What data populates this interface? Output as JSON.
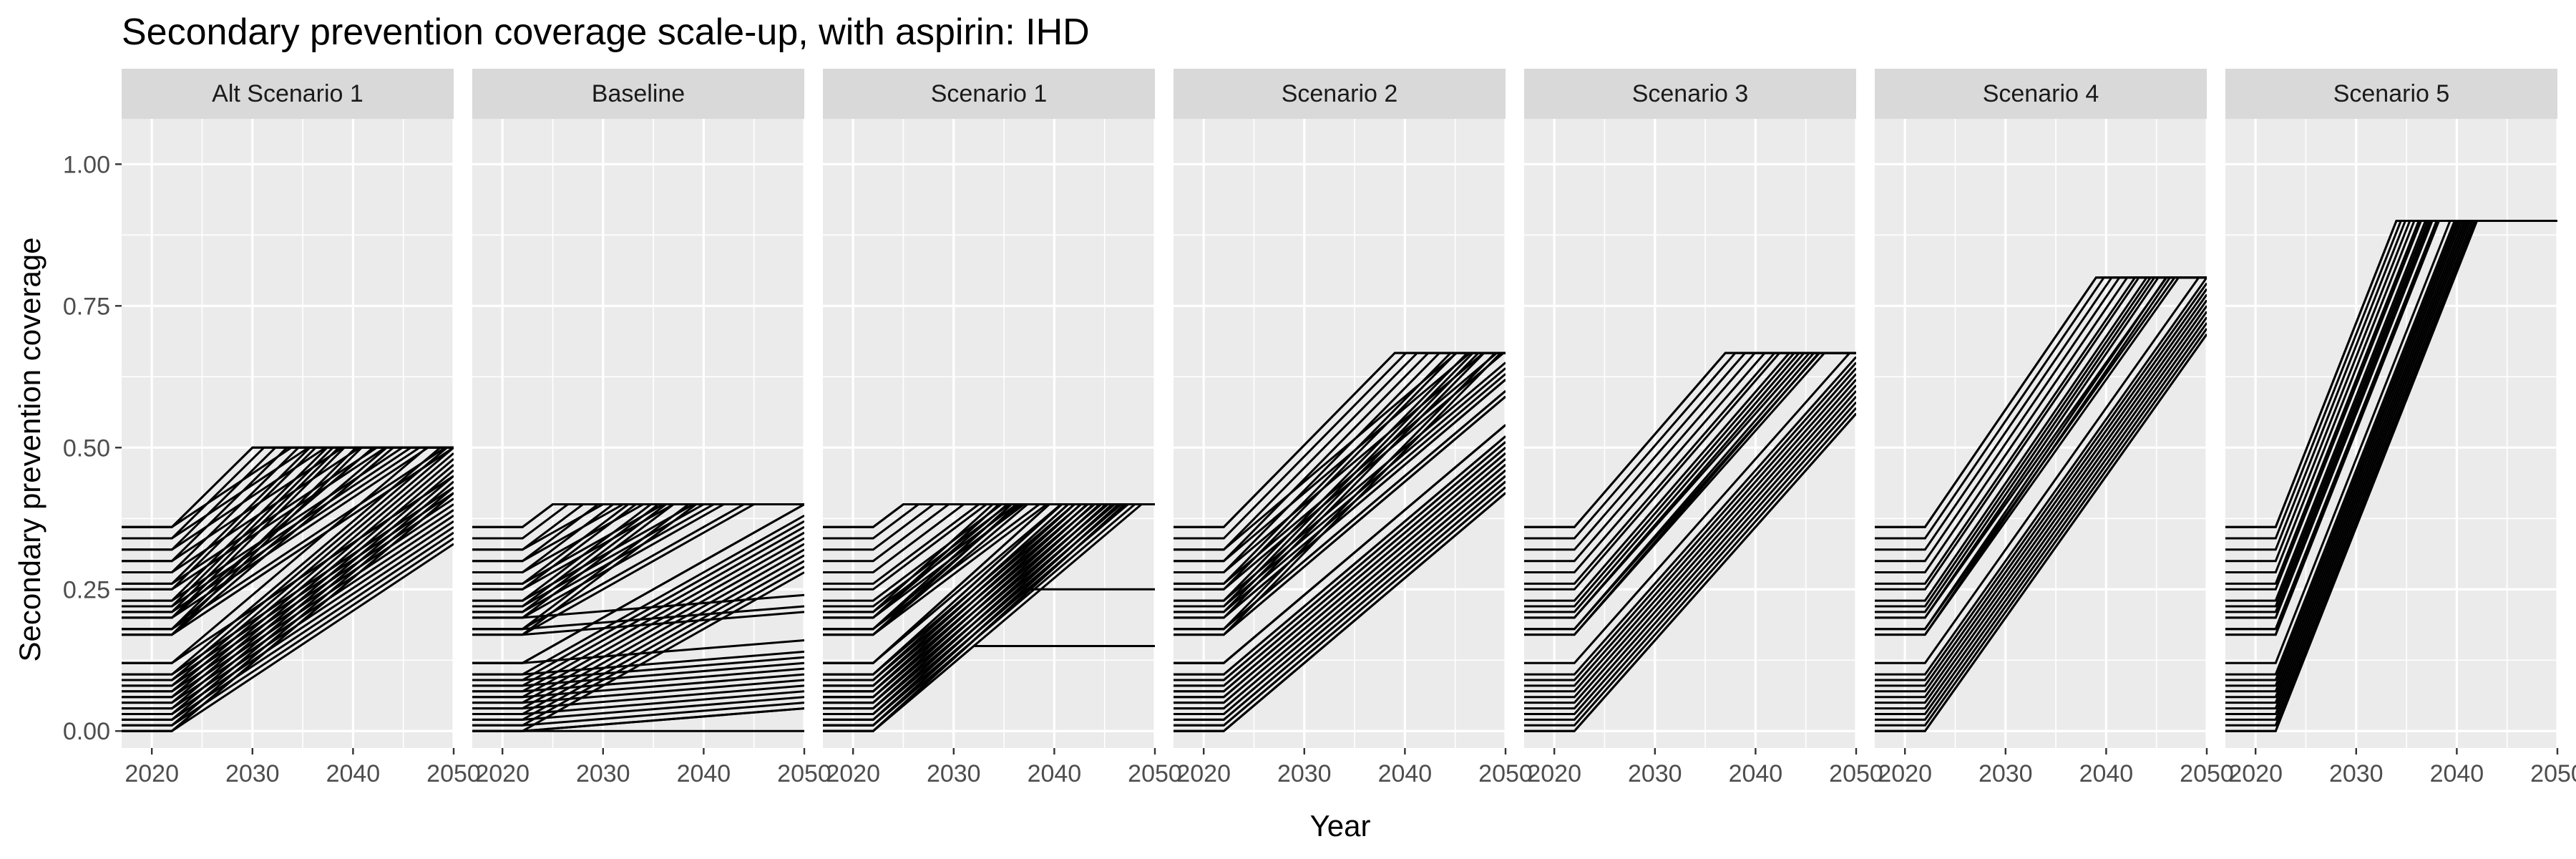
{
  "chart_data": {
    "type": "line",
    "title": "Secondary prevention coverage scale-up, with aspirin: IHD",
    "xlabel": "Year",
    "ylabel": "Secondary prevention coverage",
    "xlim": [
      2017,
      2050
    ],
    "ylim": [
      -0.03,
      1.08
    ],
    "x_ticks": [
      2020,
      2030,
      2040,
      2050
    ],
    "x_tick_labels": [
      "2020",
      "2030",
      "2040",
      "2050"
    ],
    "y_ticks": [
      0,
      0.25,
      0.5,
      0.75,
      1
    ],
    "y_tick_labels": [
      "0.00",
      "0.25",
      "0.50",
      "0.75",
      "1.00"
    ],
    "grid": true,
    "legend": "none",
    "colors": {
      "panel_bg": "#EBEBEB",
      "strip_bg": "#D9D9D9",
      "grid": "#FFFFFF",
      "line": "#000000",
      "tick_text": "#4D4D4D"
    },
    "start_year": 2022,
    "start_coverage_levels": [
      0,
      0.01,
      0.02,
      0.03,
      0.04,
      0.05,
      0.06,
      0.07,
      0.08,
      0.09,
      0.1,
      0.12,
      0.17,
      0.18,
      0.2,
      0.21,
      0.22,
      0.23,
      0.25,
      0.26,
      0.28,
      0.3,
      0.32,
      0.34,
      0.36
    ],
    "panels": [
      {
        "name": "Alt Scenario 1",
        "target": 0.5,
        "end_year_range": [
          2030,
          2050
        ],
        "series": [
          {
            "x": [
              2017,
              2022,
              2030,
              2050
            ],
            "y": [
              0.36,
              0.36,
              0.5,
              0.5
            ]
          },
          {
            "x": [
              2017,
              2022,
              2050
            ],
            "y": [
              0.17,
              0.17,
              0.5
            ]
          },
          {
            "x": [
              2017,
              2022,
              2050
            ],
            "y": [
              0,
              0,
              0.42
            ]
          }
        ]
      },
      {
        "name": "Baseline",
        "target": 0.4,
        "end_year_range": [
          2025,
          2050
        ],
        "series": [
          {
            "x": [
              2017,
              2022,
              2025,
              2050
            ],
            "y": [
              0.36,
              0.36,
              0.4,
              0.4
            ]
          },
          {
            "x": [
              2017,
              2022,
              2050
            ],
            "y": [
              0.12,
              0.12,
              0.4
            ]
          },
          {
            "x": [
              2017,
              2022,
              2050
            ],
            "y": [
              0,
              0,
              0.04
            ]
          },
          {
            "x": [
              2017,
              2050
            ],
            "y": [
              0,
              0
            ]
          }
        ]
      },
      {
        "name": "Scenario 1",
        "target": 0.4,
        "end_year_range": [
          2025,
          2048
        ],
        "series": [
          {
            "x": [
              2017,
              2022,
              2025,
              2050
            ],
            "y": [
              0.36,
              0.36,
              0.4,
              0.4
            ]
          },
          {
            "x": [
              2017,
              2022,
              2047,
              2050
            ],
            "y": [
              0,
              0,
              0.4,
              0.4
            ]
          },
          {
            "x": [
              2017,
              2022,
              2037,
              2050
            ],
            "y": [
              0.01,
              0.01,
              0.25,
              0.25
            ]
          },
          {
            "x": [
              2017,
              2022,
              2032,
              2050
            ],
            "y": [
              0,
              0,
              0.15,
              0.15
            ]
          }
        ]
      },
      {
        "name": "Scenario 2",
        "target": 0.667,
        "end_year_range": [
          2039,
          2050
        ],
        "series": [
          {
            "x": [
              2017,
              2022,
              2039,
              2050
            ],
            "y": [
              0.36,
              0.36,
              0.667,
              0.667
            ]
          },
          {
            "x": [
              2017,
              2022,
              2050
            ],
            "y": [
              0.12,
              0.12,
              0.54
            ]
          },
          {
            "x": [
              2017,
              2022,
              2050
            ],
            "y": [
              0,
              0,
              0.42
            ]
          }
        ]
      },
      {
        "name": "Scenario 3",
        "target": 0.667,
        "end_year_range": [
          2037,
          2050
        ],
        "series": [
          {
            "x": [
              2017,
              2022,
              2037,
              2050
            ],
            "y": [
              0.36,
              0.36,
              0.667,
              0.667
            ]
          },
          {
            "x": [
              2017,
              2022,
              2050
            ],
            "y": [
              0,
              0,
              0.56
            ]
          }
        ]
      },
      {
        "name": "Scenario 4",
        "target": 0.8,
        "end_year_range": [
          2039,
          2050
        ],
        "series": [
          {
            "x": [
              2017,
              2022,
              2039,
              2050
            ],
            "y": [
              0.36,
              0.36,
              0.8,
              0.8
            ]
          },
          {
            "x": [
              2017,
              2022,
              2050
            ],
            "y": [
              0,
              0,
              0.7
            ]
          }
        ]
      },
      {
        "name": "Scenario 5",
        "target": 0.9,
        "end_year_range": [
          2034,
          2042
        ],
        "series": [
          {
            "x": [
              2017,
              2022,
              2034,
              2050
            ],
            "y": [
              0.36,
              0.36,
              0.9,
              0.9
            ]
          },
          {
            "x": [
              2017,
              2022,
              2042,
              2050
            ],
            "y": [
              0,
              0,
              0.9,
              0.9
            ]
          }
        ]
      }
    ]
  }
}
